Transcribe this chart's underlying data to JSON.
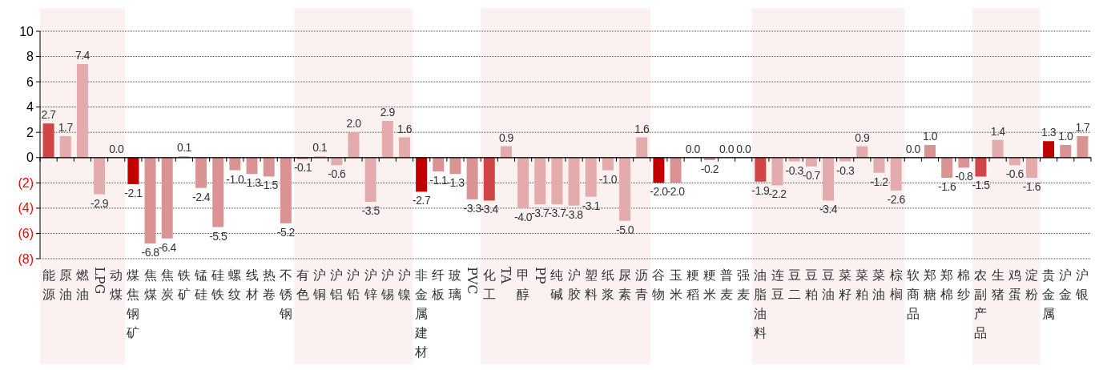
{
  "chart_data": {
    "type": "bar",
    "categories": [
      "能源",
      "原油",
      "燃油",
      "LPG",
      "动煤",
      "煤焦钢矿",
      "焦煤",
      "焦炭",
      "铁矿",
      "锰硅",
      "硅铁",
      "螺纹",
      "线材",
      "热卷",
      "不锈钢",
      "有色",
      "沪铜",
      "沪铝",
      "沪铅",
      "沪锌",
      "沪锡",
      "沪镍",
      "非金属建材",
      "纤板",
      "玻璃",
      "PVC",
      "化工",
      "TA",
      "甲醇",
      "PP",
      "纯碱",
      "沪胶",
      "塑料",
      "纸浆",
      "尿素",
      "沥青",
      "谷物",
      "玉米",
      "粳稻",
      "粳米",
      "普麦",
      "强麦",
      "油脂油料",
      "连豆",
      "豆二",
      "豆粕",
      "豆油",
      "菜籽",
      "菜粕",
      "菜油",
      "棕榈",
      "软商品",
      "郑糖",
      "郑棉",
      "棉纱",
      "农副产品",
      "生猪",
      "鸡蛋",
      "淀粉",
      "贵金属",
      "沪金",
      "沪银"
    ],
    "values": [
      2.7,
      1.7,
      7.4,
      -2.9,
      0.0,
      -2.1,
      -6.8,
      -6.4,
      0.1,
      -2.4,
      -5.5,
      -1.0,
      -1.3,
      -1.5,
      -5.2,
      -0.1,
      0.1,
      -0.6,
      2.0,
      -3.5,
      2.9,
      1.6,
      -2.7,
      -1.1,
      -1.3,
      -3.3,
      -3.4,
      0.9,
      -4.0,
      -3.7,
      -3.7,
      -3.8,
      -3.1,
      -1.0,
      -5.0,
      1.6,
      -2.0,
      -2.0,
      0.0,
      -0.2,
      0.0,
      0.0,
      -1.9,
      -2.2,
      -0.3,
      -0.7,
      -3.4,
      -0.3,
      0.9,
      -1.2,
      -2.6,
      0.0,
      1.0,
      -1.6,
      -0.8,
      -1.5,
      1.4,
      -0.6,
      -1.6,
      1.3,
      1.0,
      1.7
    ],
    "colors": [
      "#d04545",
      "#e3abab",
      "#e3abab",
      "#e3abab",
      "#e3abab",
      "#c00000",
      "#d99393",
      "#d99393",
      "#d99393",
      "#d99393",
      "#d99393",
      "#d99393",
      "#d99393",
      "#d99393",
      "#d99393",
      "#d04545",
      "#e3abab",
      "#e3abab",
      "#e3abab",
      "#e3abab",
      "#e3abab",
      "#e3abab",
      "#c00000",
      "#d99393",
      "#d99393",
      "#d99393",
      "#d04545",
      "#e3abab",
      "#e3abab",
      "#e3abab",
      "#e3abab",
      "#e3abab",
      "#e3abab",
      "#e3abab",
      "#e3abab",
      "#e3abab",
      "#c00000",
      "#d99393",
      "#d99393",
      "#d99393",
      "#d99393",
      "#d99393",
      "#d04545",
      "#e3abab",
      "#e3abab",
      "#e3abab",
      "#e3abab",
      "#e3abab",
      "#e3abab",
      "#e3abab",
      "#e3abab",
      "#c00000",
      "#d99393",
      "#d99393",
      "#d99393",
      "#d04545",
      "#e3abab",
      "#e3abab",
      "#e3abab",
      "#c00000",
      "#d99393",
      "#d99393"
    ],
    "ylim": [
      -8,
      10
    ],
    "yticks": [
      {
        "value": -8,
        "label": "(8)"
      },
      {
        "value": -6,
        "label": "(6)"
      },
      {
        "value": -4,
        "label": "(4)"
      },
      {
        "value": -2,
        "label": "(2)"
      },
      0,
      2,
      4,
      6,
      8,
      10
    ],
    "grid": "y",
    "value_labels": [
      "2.7",
      "1.7",
      "7.4",
      "-2.9",
      "0.0",
      "-2.1",
      "-6.8",
      "-6.4",
      "0.1",
      "-2.4",
      "-5.5",
      "-1.0",
      "-1.3",
      "-1.5",
      "-5.2",
      "-0.1",
      "0.1",
      "-0.6",
      "2.0",
      "-3.5",
      "2.9",
      "1.6",
      "-2.7",
      "-1.1",
      "-1.3",
      "-3.3",
      "-3.4",
      "0.9",
      "-4.0",
      "-3.7",
      "-3.7",
      "-3.8",
      "-3.1",
      "-1.0",
      "-5.0",
      "1.6",
      "-2.0",
      "-2.0",
      "0.0",
      "-0.2",
      "0.0",
      "0.0",
      "-1.9",
      "-2.2",
      "-0.3",
      "-0.7",
      "-3.4",
      "-0.3",
      "0.9",
      "-1.2",
      "-2.6",
      "0.0",
      "1.0",
      "-1.6",
      "-0.8",
      "-1.5",
      "1.4",
      "-0.6",
      "-1.6",
      "1.3",
      "1.0",
      "1.7"
    ],
    "bands": [
      {
        "axis": "x",
        "from": "能源",
        "to": "动煤",
        "color": "#fbf1f0"
      },
      {
        "axis": "x",
        "from": "有色",
        "to": "沪镍",
        "color": "#fbf1f0"
      },
      {
        "axis": "x",
        "from": "化工",
        "to": "沥青",
        "color": "#fbf1f0"
      },
      {
        "axis": "x",
        "from": "油脂油料",
        "to": "棕榈",
        "color": "#fbf1f0"
      },
      {
        "axis": "x",
        "from": "农副产品",
        "to": "淀粉",
        "color": "#fbf1f0"
      }
    ]
  }
}
